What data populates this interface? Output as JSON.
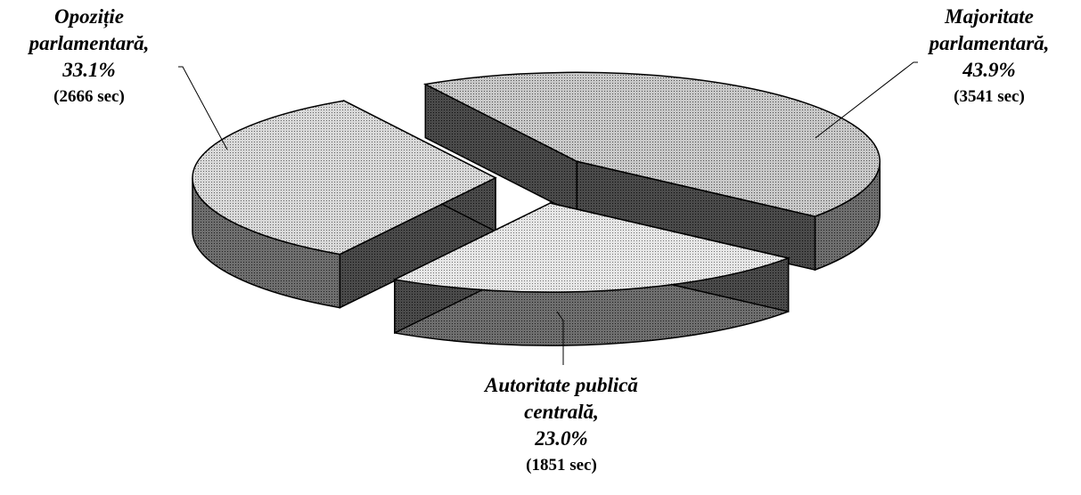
{
  "chart_data": {
    "type": "pie",
    "style": "3d-exploded",
    "slices": [
      {
        "label_lines": [
          "Majoritate",
          "parlamentară,"
        ],
        "percent_text": "43.9%",
        "seconds_text": "(3541 sec)",
        "value": 3541,
        "percent": 43.9,
        "fill": "#aaaaaa"
      },
      {
        "label_lines": [
          "Autoritate publică",
          "centrală,"
        ],
        "percent_text": "23.0%",
        "seconds_text": "(1851 sec)",
        "value": 1851,
        "percent": 23.0,
        "fill": "#d4d4d4"
      },
      {
        "label_lines": [
          "Opoziție",
          "parlamentară,"
        ],
        "percent_text": "33.1%",
        "seconds_text": "(2666 sec)",
        "value": 2666,
        "percent": 33.1,
        "fill": "#bdbdbd"
      }
    ],
    "side_fill": "#555555",
    "legend": "none",
    "title": ""
  }
}
